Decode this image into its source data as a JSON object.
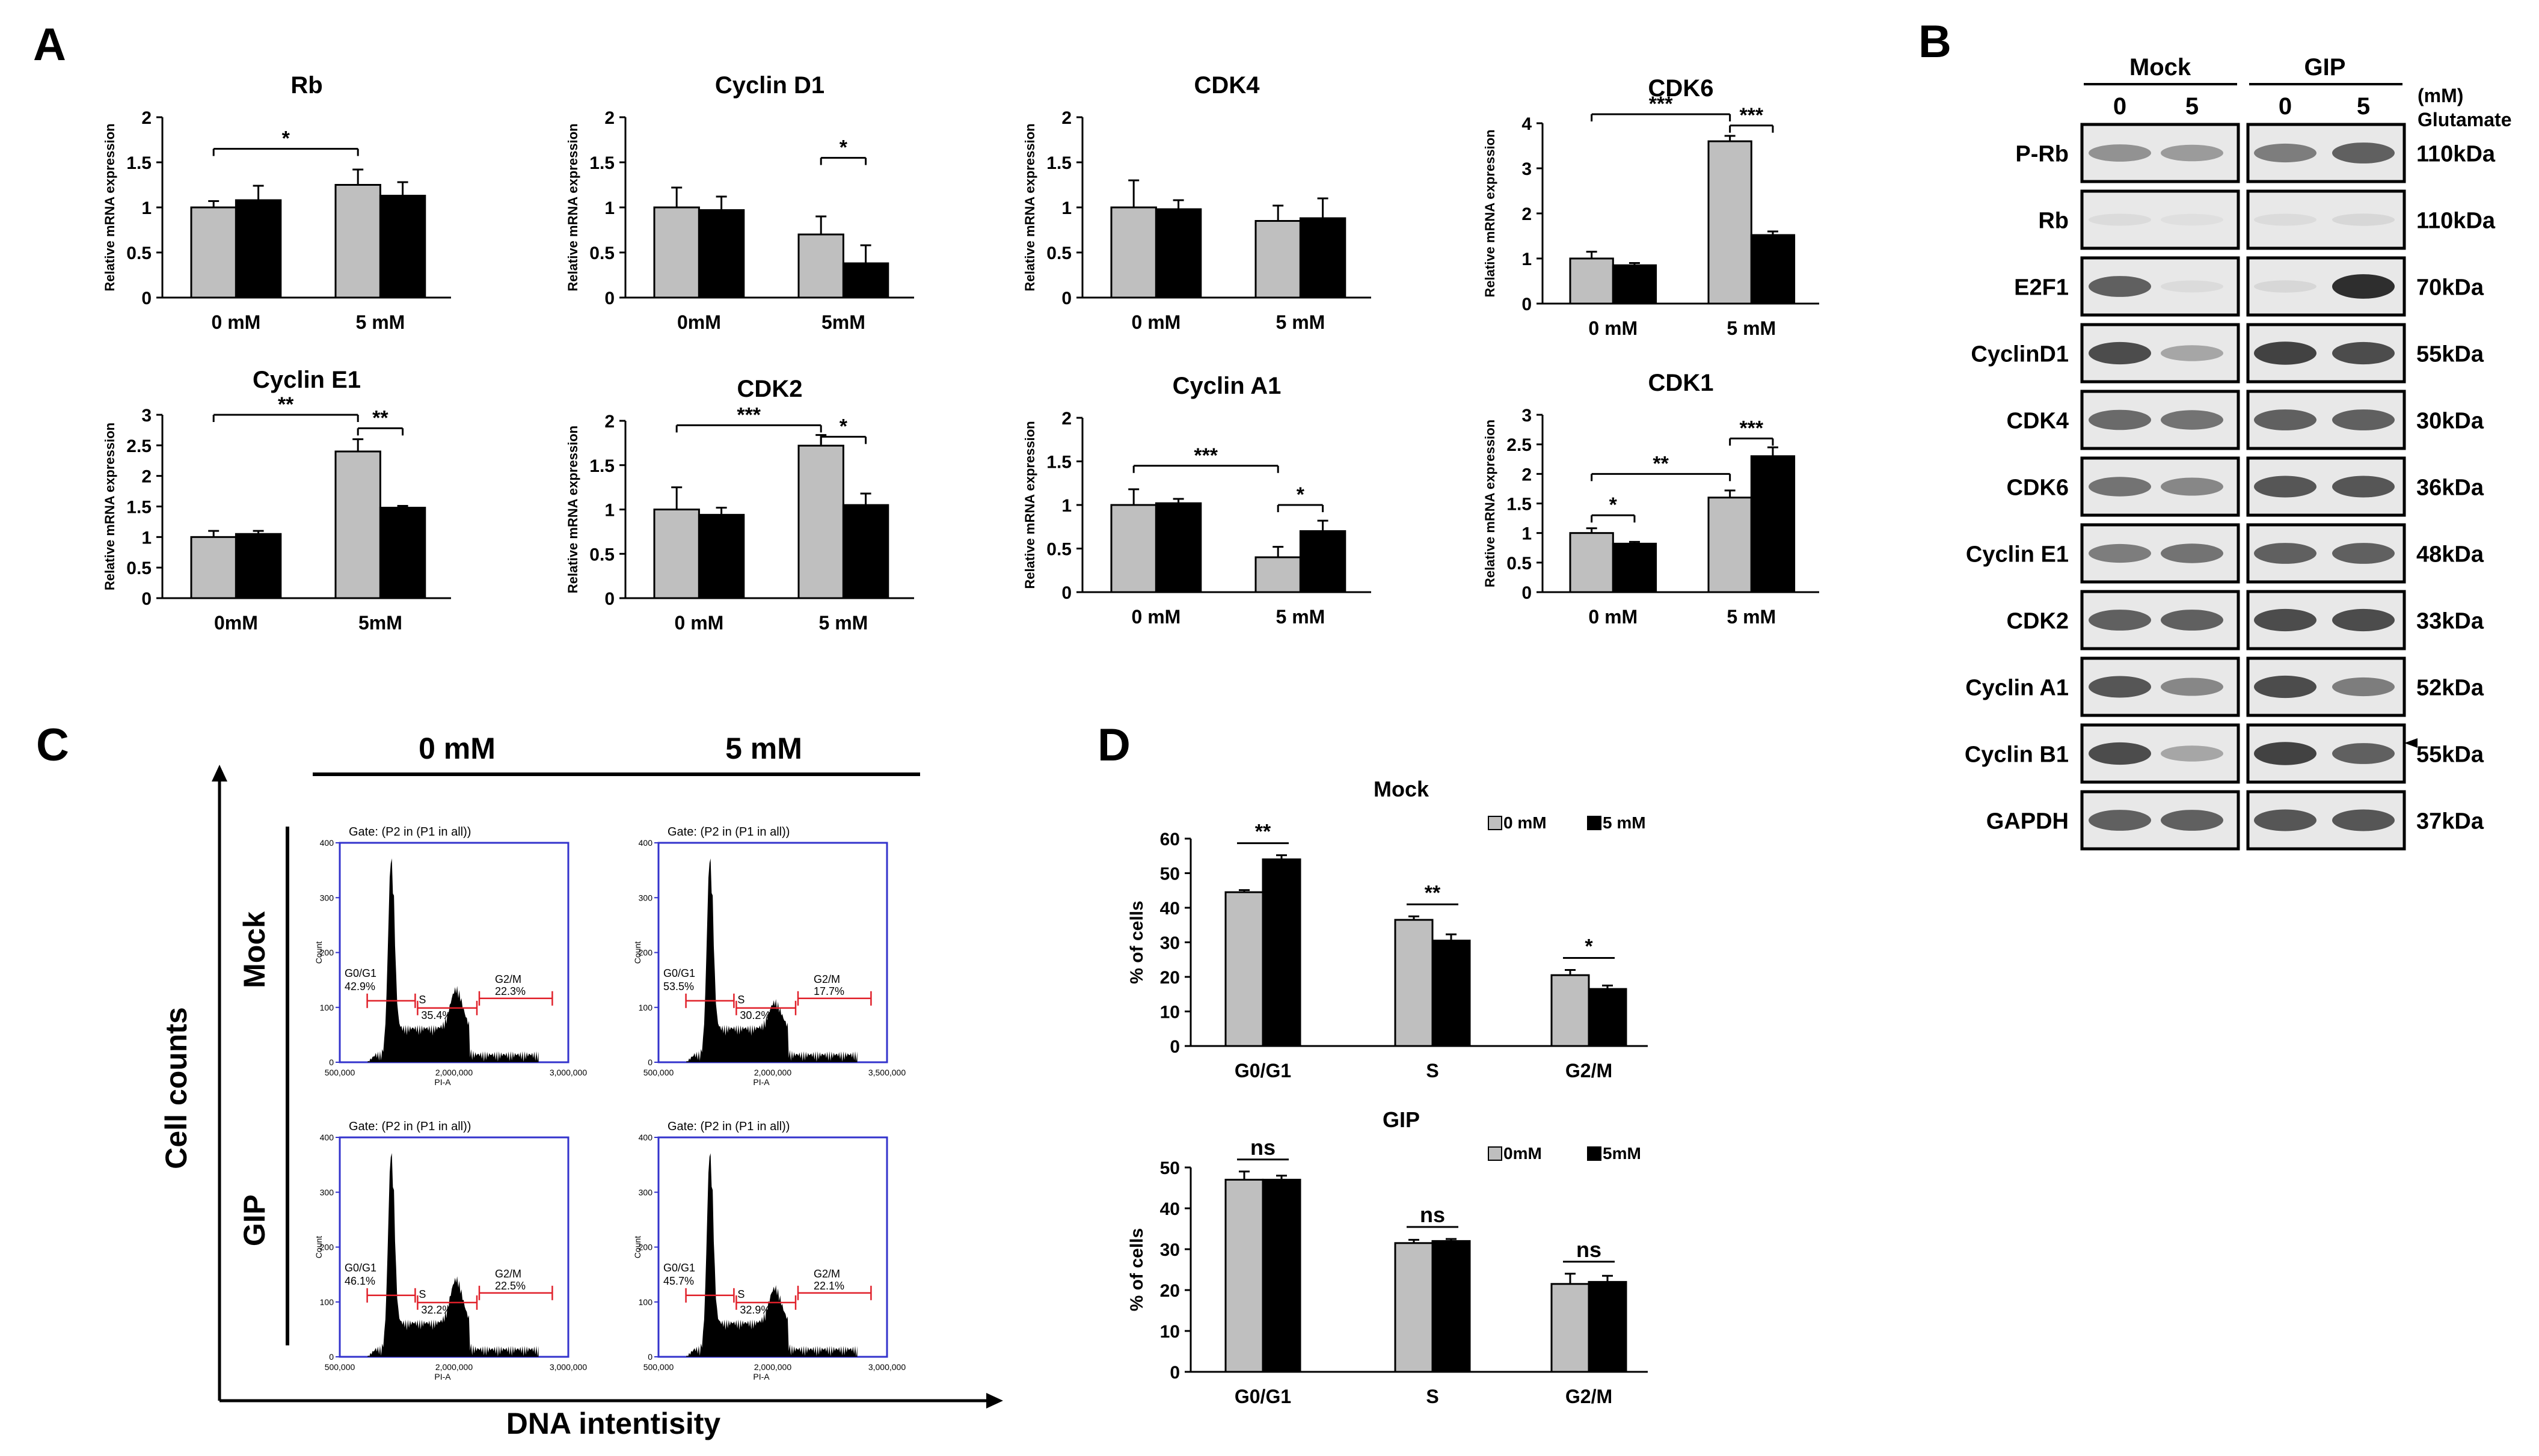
{
  "colors": {
    "gray_bar": "#bfbfbf",
    "black_bar": "#000000",
    "flow_axis": "#3333cc",
    "flow_gate": "#e0202a"
  },
  "panel_labels": [
    "A",
    "B",
    "C",
    "D"
  ],
  "panel_A": {
    "ylabel": "Relative mRNA expression",
    "charts": [
      {
        "type": "bar",
        "title": "Rb",
        "categories": [
          "0 mM",
          "5 mM"
        ],
        "ylim": [
          0,
          2
        ],
        "yticks": [
          "0",
          "0.5",
          "1",
          "1.5",
          "2"
        ],
        "gray": [
          1.0,
          1.25
        ],
        "gray_err": [
          0.07,
          0.17
        ],
        "black": [
          1.08,
          1.13
        ],
        "black_err": [
          0.16,
          0.15
        ],
        "sig": [
          {
            "text": "*",
            "from": "g0",
            "to": "g1",
            "level": 1.65
          }
        ]
      },
      {
        "type": "bar",
        "title": "Cyclin D1",
        "categories": [
          "0mM",
          "5mM"
        ],
        "ylim": [
          0,
          2
        ],
        "yticks": [
          "0",
          "0.5",
          "1",
          "1.5",
          "2"
        ],
        "gray": [
          1.0,
          0.7
        ],
        "gray_err": [
          0.22,
          0.2
        ],
        "black": [
          0.97,
          0.38
        ],
        "black_err": [
          0.15,
          0.2
        ],
        "sig": [
          {
            "text": "*",
            "from": "g1",
            "to": "b1",
            "level": 1.55
          }
        ]
      },
      {
        "type": "bar",
        "title": "CDK4",
        "categories": [
          "0 mM",
          "5 mM"
        ],
        "ylim": [
          0,
          2
        ],
        "yticks": [
          "0",
          "0.5",
          "1",
          "1.5",
          "2"
        ],
        "gray": [
          1.0,
          0.85
        ],
        "gray_err": [
          0.3,
          0.17
        ],
        "black": [
          0.98,
          0.88
        ],
        "black_err": [
          0.1,
          0.22
        ],
        "sig": []
      },
      {
        "type": "bar",
        "title": "CDK6",
        "categories": [
          "0 mM",
          "5 mM"
        ],
        "ylim": [
          0,
          4
        ],
        "yticks": [
          "0",
          "1",
          "2",
          "3",
          "4"
        ],
        "gray": [
          1.0,
          3.6
        ],
        "gray_err": [
          0.15,
          0.12
        ],
        "black": [
          0.85,
          1.52
        ],
        "black_err": [
          0.05,
          0.08
        ],
        "sig": [
          {
            "text": "***",
            "from": "g0",
            "to": "g1",
            "level": 4.2
          },
          {
            "text": "***",
            "from": "g1",
            "to": "b1",
            "level": 3.95
          }
        ]
      },
      {
        "type": "bar",
        "title": "Cyclin E1",
        "categories": [
          "0mM",
          "5mM"
        ],
        "ylim": [
          0,
          3
        ],
        "yticks": [
          "0",
          "0.5",
          "1",
          "1.5",
          "2",
          "2.5",
          "3"
        ],
        "gray": [
          1.0,
          2.4
        ],
        "gray_err": [
          0.1,
          0.2
        ],
        "black": [
          1.05,
          1.48
        ],
        "black_err": [
          0.05,
          0.03
        ],
        "sig": [
          {
            "text": "**",
            "from": "g0",
            "to": "g1",
            "level": 3.0
          },
          {
            "text": "**",
            "from": "g1",
            "to": "b1",
            "level": 2.78
          }
        ]
      },
      {
        "type": "bar",
        "title": "CDK2",
        "categories": [
          "0 mM",
          "5 mM"
        ],
        "ylim": [
          0,
          2
        ],
        "yticks": [
          "0",
          "0.5",
          "1",
          "1.5",
          "2"
        ],
        "gray": [
          1.0,
          1.72
        ],
        "gray_err": [
          0.25,
          0.12
        ],
        "black": [
          0.94,
          1.05
        ],
        "black_err": [
          0.08,
          0.13
        ],
        "sig": [
          {
            "text": "***",
            "from": "g0",
            "to": "g1",
            "level": 1.95
          },
          {
            "text": "*",
            "from": "g1",
            "to": "b1",
            "level": 1.82
          }
        ]
      },
      {
        "type": "bar",
        "title": "Cyclin A1",
        "categories": [
          "0 mM",
          "5 mM"
        ],
        "ylim": [
          0,
          2
        ],
        "yticks": [
          "0",
          "0.5",
          "1",
          "1.5",
          "2"
        ],
        "gray": [
          1.0,
          0.4
        ],
        "gray_err": [
          0.18,
          0.12
        ],
        "black": [
          1.02,
          0.7
        ],
        "black_err": [
          0.05,
          0.12
        ],
        "sig": [
          {
            "text": "***",
            "from": "g0",
            "to": "g1",
            "level": 1.45
          },
          {
            "text": "*",
            "from": "g1",
            "to": "b1",
            "level": 1.0
          }
        ]
      },
      {
        "type": "bar",
        "title": "CDK1",
        "categories": [
          "0 mM",
          "5 mM"
        ],
        "ylim": [
          0,
          3
        ],
        "yticks": [
          "0",
          "0.5",
          "1",
          "1.5",
          "2",
          "2.5",
          "3"
        ],
        "gray": [
          1.0,
          1.6
        ],
        "gray_err": [
          0.08,
          0.12
        ],
        "black": [
          0.82,
          2.3
        ],
        "black_err": [
          0.03,
          0.15
        ],
        "sig": [
          {
            "text": "*",
            "from": "g0",
            "to": "b0",
            "level": 1.3
          },
          {
            "text": "**",
            "from": "g0",
            "to": "g1",
            "level": 2.0
          },
          {
            "text": "***",
            "from": "g1",
            "to": "b1",
            "level": 2.6
          }
        ]
      }
    ]
  },
  "panel_B": {
    "groups": [
      "Mock",
      "GIP"
    ],
    "lanes": [
      "0",
      "5",
      "0",
      "5"
    ],
    "unit": "(mM)",
    "treatment": "Glutamate",
    "rows": [
      {
        "protein": "P-Rb",
        "size": "110kDa",
        "intensity": [
          0.45,
          0.4,
          0.55,
          0.7
        ]
      },
      {
        "protein": "Rb",
        "size": "110kDa",
        "intensity": [
          0.08,
          0.06,
          0.08,
          0.1
        ]
      },
      {
        "protein": "E2F1",
        "size": "70kDa",
        "intensity": [
          0.7,
          0.08,
          0.1,
          0.95
        ]
      },
      {
        "protein": "CyclinD1",
        "size": "55kDa",
        "intensity": [
          0.8,
          0.35,
          0.85,
          0.8
        ]
      },
      {
        "protein": "CDK4",
        "size": "30kDa",
        "intensity": [
          0.65,
          0.6,
          0.7,
          0.7
        ]
      },
      {
        "protein": "CDK6",
        "size": "36kDa",
        "intensity": [
          0.6,
          0.5,
          0.75,
          0.75
        ]
      },
      {
        "protein": "Cyclin E1",
        "size": "48kDa",
        "intensity": [
          0.55,
          0.6,
          0.7,
          0.7
        ]
      },
      {
        "protein": "CDK2",
        "size": "33kDa",
        "intensity": [
          0.7,
          0.7,
          0.8,
          0.8
        ]
      },
      {
        "protein": "Cyclin A1",
        "size": "52kDa",
        "intensity": [
          0.75,
          0.5,
          0.8,
          0.55
        ]
      },
      {
        "protein": "Cyclin B1",
        "size": "55kDa",
        "intensity": [
          0.8,
          0.35,
          0.85,
          0.7
        ]
      },
      {
        "protein": "GAPDH",
        "size": "37kDa",
        "intensity": [
          0.7,
          0.7,
          0.75,
          0.75
        ]
      }
    ]
  },
  "panel_C": {
    "col_labels": [
      "0 mM",
      "5 mM"
    ],
    "row_labels": [
      "Mock",
      "GIP"
    ],
    "ylabel": "Cell counts",
    "xlabel": "DNA intentisity",
    "plot_axis_y": "Count",
    "plot_axis_x": "PI-A",
    "gate_label": "Gate: (P2 in (P1 in all))",
    "y_ticks": [
      "0",
      "100",
      "200",
      "300",
      "400"
    ],
    "plots": [
      {
        "x_ticks": [
          "500,000",
          "2,000,000",
          "3,000,000"
        ],
        "g0g1": "42.9%",
        "s": "35.4%",
        "g2m": "22.3%"
      },
      {
        "x_ticks": [
          "500,000",
          "2,000,000",
          "3,500,000"
        ],
        "g0g1": "53.5%",
        "s": "30.2%",
        "g2m": "17.7%"
      },
      {
        "x_ticks": [
          "500,000",
          "2,000,000",
          "3,000,000"
        ],
        "g0g1": "46.1%",
        "s": "32.2%",
        "g2m": "22.5%"
      },
      {
        "x_ticks": [
          "500,000",
          "2,000,000",
          "3,000,000"
        ],
        "g0g1": "45.7%",
        "s": "32.9%",
        "g2m": "22.1%"
      }
    ],
    "phase_names": {
      "g0g1": "G0/G1",
      "s": "S",
      "g2m": "G2/M"
    }
  },
  "panel_D": {
    "ylabel": "% of cells",
    "charts": [
      {
        "type": "bar",
        "title": "Mock",
        "legend": [
          "0 mM",
          "5 mM"
        ],
        "categories": [
          "G0/G1",
          "S",
          "G2/M"
        ],
        "ylim": [
          0,
          60
        ],
        "yticks": [
          "0",
          "10",
          "20",
          "30",
          "40",
          "50",
          "60"
        ],
        "gray": [
          44.5,
          36.5,
          20.5
        ],
        "gray_err": [
          0.6,
          1.0,
          1.5
        ],
        "black": [
          54.0,
          30.5,
          16.5
        ],
        "black_err": [
          1.2,
          1.8,
          1.0
        ],
        "sig": [
          "**",
          "**",
          "*"
        ]
      },
      {
        "type": "bar",
        "title": "GIP",
        "legend": [
          "0mM",
          "5mM"
        ],
        "categories": [
          "G0/G1",
          "S",
          "G2/M"
        ],
        "ylim": [
          0,
          50
        ],
        "yticks": [
          "0",
          "10",
          "20",
          "30",
          "40",
          "50"
        ],
        "gray": [
          47.0,
          31.5,
          21.5
        ],
        "gray_err": [
          2.0,
          0.8,
          2.5
        ],
        "black": [
          47.0,
          32.0,
          22.0
        ],
        "black_err": [
          1.0,
          0.5,
          1.5
        ],
        "sig": [
          "ns",
          "ns",
          "ns"
        ]
      }
    ]
  },
  "chart_data": [
    {
      "type": "bar",
      "panel": "A",
      "title": "Rb",
      "categories": [
        "0 mM",
        "5 mM"
      ],
      "series": [
        {
          "name": "gray",
          "values": [
            1.0,
            1.25
          ]
        },
        {
          "name": "black",
          "values": [
            1.08,
            1.13
          ]
        }
      ],
      "ylabel": "Relative mRNA expression",
      "ylim": [
        0,
        2
      ]
    },
    {
      "type": "bar",
      "panel": "A",
      "title": "Cyclin D1",
      "categories": [
        "0mM",
        "5mM"
      ],
      "series": [
        {
          "name": "gray",
          "values": [
            1.0,
            0.7
          ]
        },
        {
          "name": "black",
          "values": [
            0.97,
            0.38
          ]
        }
      ],
      "ylabel": "Relative mRNA expression",
      "ylim": [
        0,
        2
      ]
    },
    {
      "type": "bar",
      "panel": "A",
      "title": "CDK4",
      "categories": [
        "0 mM",
        "5 mM"
      ],
      "series": [
        {
          "name": "gray",
          "values": [
            1.0,
            0.85
          ]
        },
        {
          "name": "black",
          "values": [
            0.98,
            0.88
          ]
        }
      ],
      "ylabel": "Relative mRNA expression",
      "ylim": [
        0,
        2
      ]
    },
    {
      "type": "bar",
      "panel": "A",
      "title": "CDK6",
      "categories": [
        "0 mM",
        "5 mM"
      ],
      "series": [
        {
          "name": "gray",
          "values": [
            1.0,
            3.6
          ]
        },
        {
          "name": "black",
          "values": [
            0.85,
            1.52
          ]
        }
      ],
      "ylabel": "Relative mRNA expression",
      "ylim": [
        0,
        4
      ]
    },
    {
      "type": "bar",
      "panel": "A",
      "title": "Cyclin E1",
      "categories": [
        "0mM",
        "5mM"
      ],
      "series": [
        {
          "name": "gray",
          "values": [
            1.0,
            2.4
          ]
        },
        {
          "name": "black",
          "values": [
            1.05,
            1.48
          ]
        }
      ],
      "ylabel": "Relative mRNA expression",
      "ylim": [
        0,
        3
      ]
    },
    {
      "type": "bar",
      "panel": "A",
      "title": "CDK2",
      "categories": [
        "0 mM",
        "5 mM"
      ],
      "series": [
        {
          "name": "gray",
          "values": [
            1.0,
            1.72
          ]
        },
        {
          "name": "black",
          "values": [
            0.94,
            1.05
          ]
        }
      ],
      "ylabel": "Relative mRNA expression",
      "ylim": [
        0,
        2
      ]
    },
    {
      "type": "bar",
      "panel": "A",
      "title": "Cyclin A1",
      "categories": [
        "0 mM",
        "5 mM"
      ],
      "series": [
        {
          "name": "gray",
          "values": [
            1.0,
            0.4
          ]
        },
        {
          "name": "black",
          "values": [
            1.02,
            0.7
          ]
        }
      ],
      "ylabel": "Relative mRNA expression",
      "ylim": [
        0,
        2
      ]
    },
    {
      "type": "bar",
      "panel": "A",
      "title": "CDK1",
      "categories": [
        "0 mM",
        "5 mM"
      ],
      "series": [
        {
          "name": "gray",
          "values": [
            1.0,
            1.6
          ]
        },
        {
          "name": "black",
          "values": [
            0.82,
            2.3
          ]
        }
      ],
      "ylabel": "Relative mRNA expression",
      "ylim": [
        0,
        3
      ]
    },
    {
      "type": "bar",
      "panel": "D",
      "title": "Mock",
      "categories": [
        "G0/G1",
        "S",
        "G2/M"
      ],
      "series": [
        {
          "name": "0 mM",
          "values": [
            44.5,
            36.5,
            20.5
          ]
        },
        {
          "name": "5 mM",
          "values": [
            54.0,
            30.5,
            16.5
          ]
        }
      ],
      "ylabel": "% of cells",
      "ylim": [
        0,
        60
      ]
    },
    {
      "type": "bar",
      "panel": "D",
      "title": "GIP",
      "categories": [
        "G0/G1",
        "S",
        "G2/M"
      ],
      "series": [
        {
          "name": "0mM",
          "values": [
            47.0,
            31.5,
            21.5
          ]
        },
        {
          "name": "5mM",
          "values": [
            47.0,
            32.0,
            22.0
          ]
        }
      ],
      "ylabel": "% of cells",
      "ylim": [
        0,
        50
      ]
    }
  ]
}
